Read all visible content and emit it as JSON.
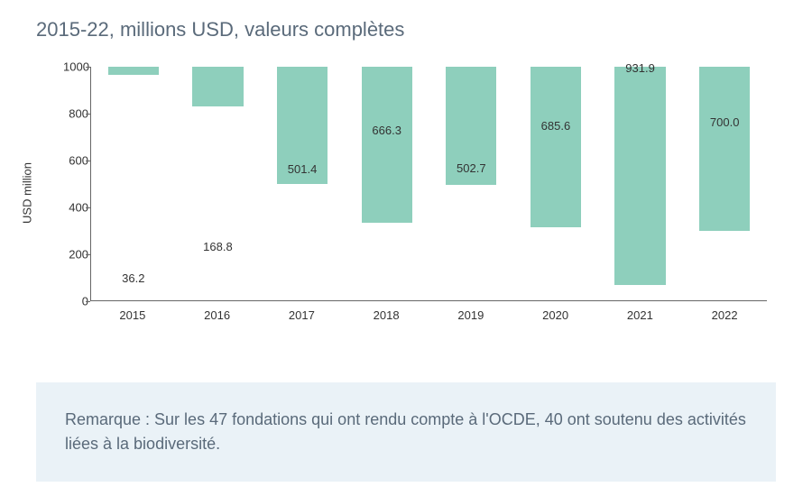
{
  "title": "2015-22, millions USD, valeurs complètes",
  "title_color": "#5a6a7a",
  "chart": {
    "type": "bar",
    "ylabel": "USD million",
    "ylabel_fontsize": 13,
    "axis_text_color": "#333333",
    "categories": [
      "2015",
      "2016",
      "2017",
      "2018",
      "2019",
      "2020",
      "2021",
      "2022"
    ],
    "values": [
      36.2,
      168.8,
      501.4,
      666.3,
      502.7,
      685.6,
      931.9,
      700.0
    ],
    "value_labels": [
      "36.2",
      "168.8",
      "501.4",
      "666.3",
      "502.7",
      "685.6",
      "931.9",
      "700.0"
    ],
    "bar_color": "#8ecfbc",
    "ylim": [
      0,
      1000
    ],
    "ytick_step": 200,
    "yticks": [
      "0",
      "200",
      "400",
      "600",
      "800",
      "1000"
    ],
    "background_color": "#ffffff",
    "axis_color": "#666666",
    "bar_width_ratio": 0.6,
    "value_label_fontsize": 13,
    "tick_label_fontsize": 13
  },
  "note": {
    "text": "Remarque : Sur les 47 fondations qui ont rendu compte à l'OCDE, 40 ont soutenu des activités liées à la biodiversité.",
    "background_color": "#eaf2f7",
    "text_color": "#5a6a7a",
    "fontsize": 18
  }
}
